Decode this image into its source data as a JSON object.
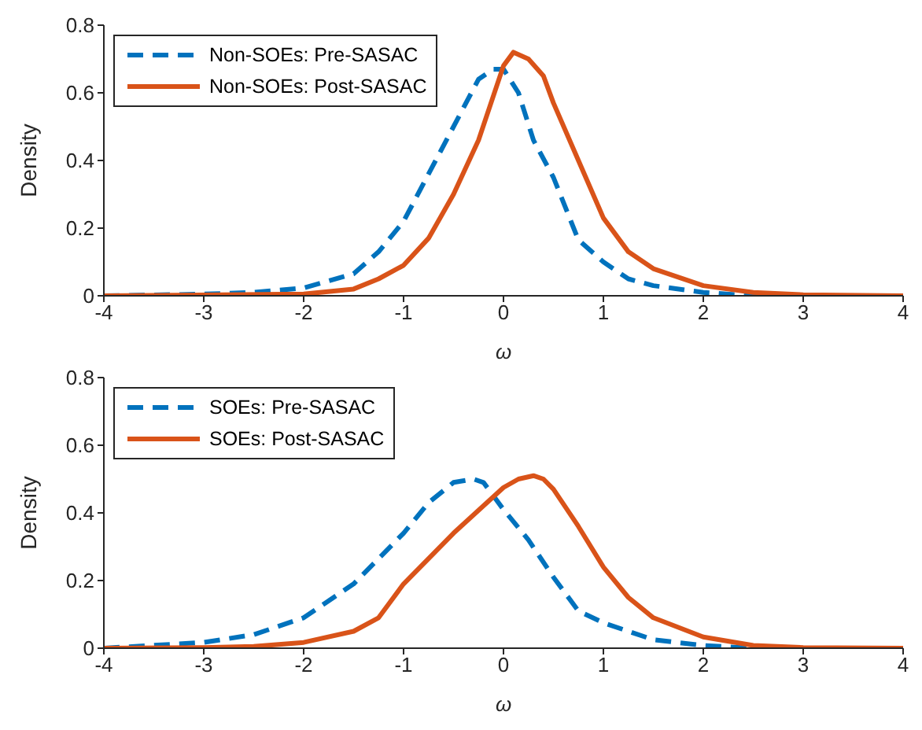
{
  "chart_data": [
    {
      "type": "line",
      "xlabel": "ω",
      "ylabel": "Density",
      "xlim": [
        -4,
        4
      ],
      "xticks": [
        -4,
        -3,
        -2,
        -1,
        0,
        1,
        2,
        3,
        4
      ],
      "ylim": [
        0,
        0.8
      ],
      "yticks": [
        0,
        0.2,
        0.4,
        0.6,
        0.8
      ],
      "legend": "top left",
      "series": [
        {
          "name": "Non-SOEs: Pre-SASAC",
          "color": "#0072bd",
          "line_style": "dashed",
          "x": [
            -4,
            -3,
            -2.5,
            -2,
            -1.5,
            -1.25,
            -1,
            -0.75,
            -0.5,
            -0.25,
            -0.1,
            0,
            0.15,
            0.3,
            0.5,
            0.75,
            1,
            1.25,
            1.5,
            2,
            2.5,
            3,
            4
          ],
          "values": [
            0,
            0.005,
            0.01,
            0.023,
            0.065,
            0.13,
            0.22,
            0.36,
            0.5,
            0.64,
            0.67,
            0.67,
            0.6,
            0.46,
            0.35,
            0.165,
            0.1,
            0.05,
            0.03,
            0.01,
            0,
            0,
            0
          ]
        },
        {
          "name": "Non-SOEs: Post-SASAC",
          "color": "#d95319",
          "line_style": "solid",
          "x": [
            -4,
            -2,
            -1.5,
            -1.25,
            -1,
            -0.75,
            -0.5,
            -0.25,
            0,
            0.1,
            0.25,
            0.4,
            0.5,
            0.75,
            1,
            1.25,
            1.5,
            2,
            2.5,
            3,
            4
          ],
          "values": [
            0,
            0.005,
            0.02,
            0.05,
            0.09,
            0.17,
            0.3,
            0.46,
            0.68,
            0.72,
            0.7,
            0.65,
            0.57,
            0.4,
            0.23,
            0.13,
            0.08,
            0.03,
            0.01,
            0.003,
            0
          ]
        }
      ]
    },
    {
      "type": "line",
      "xlabel": "ω",
      "ylabel": "Density",
      "xlim": [
        -4,
        4
      ],
      "xticks": [
        -4,
        -3,
        -2,
        -1,
        0,
        1,
        2,
        3,
        4
      ],
      "ylim": [
        0,
        0.8
      ],
      "yticks": [
        0,
        0.2,
        0.4,
        0.6,
        0.8
      ],
      "legend": "top left",
      "series": [
        {
          "name": "SOEs: Pre-SASAC",
          "color": "#0072bd",
          "line_style": "dashed",
          "x": [
            -4,
            -3,
            -2.5,
            -2,
            -1.5,
            -1,
            -0.75,
            -0.5,
            -0.3,
            -0.2,
            0,
            0.25,
            0.5,
            0.75,
            1,
            1.5,
            2,
            2.5,
            3,
            4
          ],
          "values": [
            0,
            0.017,
            0.04,
            0.09,
            0.19,
            0.34,
            0.43,
            0.49,
            0.5,
            0.49,
            0.41,
            0.32,
            0.21,
            0.11,
            0.075,
            0.025,
            0.008,
            0,
            0,
            0
          ]
        },
        {
          "name": "SOEs: Post-SASAC",
          "color": "#d95319",
          "line_style": "solid",
          "x": [
            -4,
            -3,
            -2.5,
            -2,
            -1.5,
            -1.25,
            -1,
            -0.5,
            0,
            0.15,
            0.3,
            0.4,
            0.5,
            0.75,
            1,
            1.25,
            1.5,
            2,
            2.5,
            3,
            4
          ],
          "values": [
            0,
            0.002,
            0.005,
            0.017,
            0.05,
            0.09,
            0.19,
            0.34,
            0.475,
            0.5,
            0.51,
            0.5,
            0.47,
            0.36,
            0.24,
            0.15,
            0.09,
            0.033,
            0.008,
            0.002,
            0
          ]
        }
      ]
    }
  ]
}
